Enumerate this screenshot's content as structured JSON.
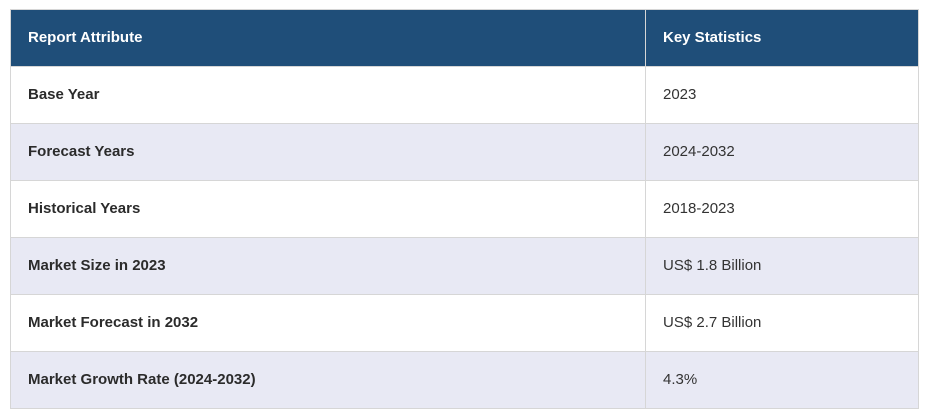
{
  "table": {
    "headers": [
      "Report Attribute",
      "Key Statistics"
    ],
    "rows": [
      {
        "attribute": "Base Year",
        "value": "2023"
      },
      {
        "attribute": "Forecast Years",
        "value": "2024-2032"
      },
      {
        "attribute": "Historical Years",
        "value": "2018-2023"
      },
      {
        "attribute": "Market Size in 2023",
        "value": "US$ 1.8 Billion"
      },
      {
        "attribute": "Market Forecast in 2032",
        "value": "US$ 2.7 Billion"
      },
      {
        "attribute": "Market Growth Rate (2024-2032)",
        "value": "4.3%"
      }
    ]
  },
  "colors": {
    "header_bg": "#1f4e79",
    "header_text": "#ffffff",
    "row_alt_bg": "#e8e9f4",
    "border": "#d6d6d6"
  }
}
